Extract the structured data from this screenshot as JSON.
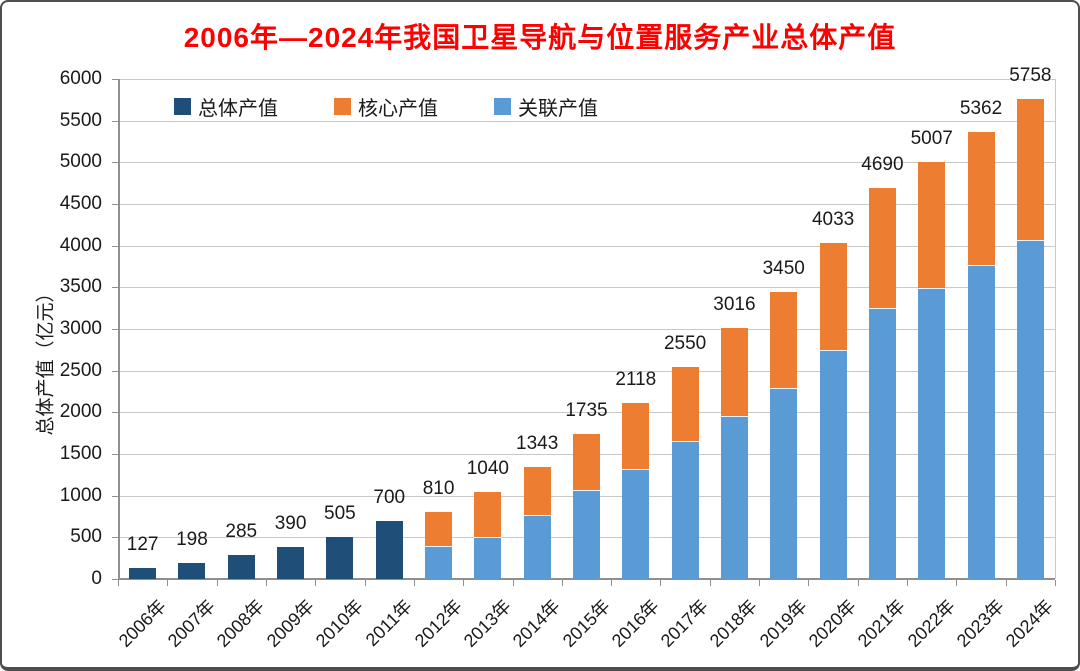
{
  "title": {
    "text": "2006年—2024年我国卫星导航与位置服务产业总体产值",
    "color": "#ff0000"
  },
  "legend": [
    {
      "label": "总体产值",
      "color": "#1F4E79"
    },
    {
      "label": "核心产值",
      "color": "#ED7D31"
    },
    {
      "label": "关联产值",
      "color": "#5B9BD5"
    }
  ],
  "y_axis": {
    "title": "总体产值（亿元）",
    "min": 0,
    "max": 6000,
    "step": 500,
    "tick_labels": [
      "0",
      "500",
      "1000",
      "1500",
      "2000",
      "2500",
      "3000",
      "3500",
      "4000",
      "4500",
      "5000",
      "5500",
      "6000"
    ]
  },
  "colors": {
    "total_bar": "#1F4E79",
    "core_bar": "#ED7D31",
    "associated_bar": "#5B9BD5",
    "gridline": "#c9c9c9",
    "axis": "#8f8f8f"
  },
  "chart_data": {
    "type": "bar",
    "stacked": true,
    "title": "2006年—2024年我国卫星导航与位置服务产业总体产值",
    "xlabel": "",
    "ylabel": "总体产值（亿元）",
    "ylim": [
      0,
      6000
    ],
    "grid": true,
    "legend_position": "top-left-inside",
    "categories": [
      "2006年",
      "2007年",
      "2008年",
      "2009年",
      "2010年",
      "2011年",
      "2012年",
      "2013年",
      "2014年",
      "2015年",
      "2016年",
      "2017年",
      "2018年",
      "2019年",
      "2020年",
      "2021年",
      "2022年",
      "2023年",
      "2024年"
    ],
    "totals": [
      127,
      198,
      285,
      390,
      505,
      700,
      810,
      1040,
      1343,
      1735,
      2118,
      2550,
      3016,
      3450,
      4033,
      4690,
      5007,
      5362,
      5758
    ],
    "value_labels": [
      "127",
      "198",
      "285",
      "390",
      "505",
      "700",
      "810",
      "1040",
      "1343",
      "1735",
      "2118",
      "2550",
      "3016",
      "3450",
      "4033",
      "4690",
      "5007",
      "5362",
      "5758"
    ],
    "series": [
      {
        "name": "总体产值",
        "color": "#1F4E79",
        "values": [
          127,
          198,
          285,
          390,
          505,
          700,
          null,
          null,
          null,
          null,
          null,
          null,
          null,
          null,
          null,
          null,
          null,
          null,
          null
        ]
      },
      {
        "name": "核心产值",
        "color": "#ED7D31",
        "values": [
          null,
          null,
          null,
          null,
          null,
          null,
          420,
          545,
          588,
          680,
          808,
          902,
          1069,
          1166,
          1295,
          1454,
          1527,
          1611,
          1699
        ]
      },
      {
        "name": "关联产值",
        "color": "#5B9BD5",
        "values": [
          null,
          null,
          null,
          null,
          null,
          null,
          390,
          495,
          755,
          1055,
          1310,
          1648,
          1947,
          2284,
          2738,
          3236,
          3480,
          3751,
          4059
        ]
      }
    ]
  }
}
